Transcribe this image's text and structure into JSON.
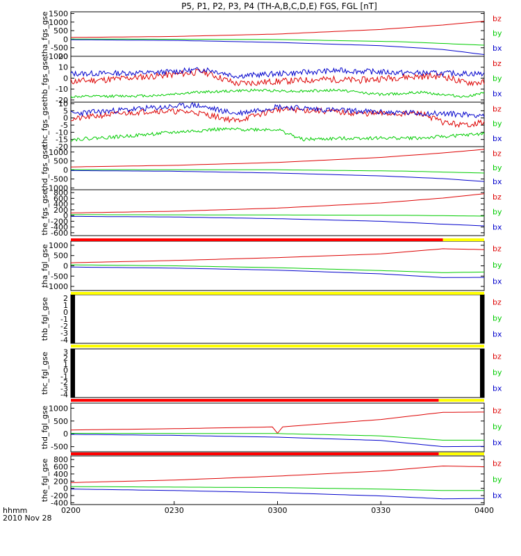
{
  "title": "P5, P1, P2, P3, P4 (TH-A,B,C,D,E) FGS, FGL [nT]",
  "footer": {
    "time_label": "hhmm",
    "date_label": "2010 Nov 28"
  },
  "colors": {
    "bz": "#dd0000",
    "by": "#00cc00",
    "bx": "#0000cc",
    "flag_red": "#ff0000",
    "flag_yellow": "#ffff00",
    "fill_black": "#000000"
  },
  "chart_data": {
    "type": "line",
    "x_axis": {
      "ticks": [
        "0200",
        "0230",
        "0300",
        "0330",
        "0400"
      ],
      "range": [
        "0200",
        "0400"
      ]
    },
    "panels": [
      {
        "id": "tha_fgs_gse",
        "ylabel": "tha_fgs_gse",
        "ylim": [
          -1000,
          1600
        ],
        "yticks": [
          "1500",
          "1000",
          "500",
          "0",
          "-500",
          "-1000"
        ],
        "yvals": [
          1500,
          1000,
          500,
          0,
          -500,
          -1000
        ],
        "mode": "smooth",
        "series": [
          {
            "name": "bz",
            "shape": [
              [
                0,
                100
              ],
              [
                0.25,
                160
              ],
              [
                0.5,
                300
              ],
              [
                0.75,
                570
              ],
              [
                0.9,
                830
              ],
              [
                1,
                1050
              ]
            ]
          },
          {
            "name": "by",
            "shape": [
              [
                0,
                10
              ],
              [
                0.5,
                -20
              ],
              [
                0.8,
                -150
              ],
              [
                1,
                -350
              ]
            ]
          },
          {
            "name": "bx",
            "shape": [
              [
                0,
                -30
              ],
              [
                0.25,
                -70
              ],
              [
                0.5,
                -190
              ],
              [
                0.75,
                -380
              ],
              [
                0.9,
                -600
              ],
              [
                1,
                -900
              ]
            ]
          }
        ]
      },
      {
        "id": "thb_fgs_gse",
        "ylabel": "thb_fgs_gse",
        "ylim": [
          -22,
          20
        ],
        "yticks": [
          "20",
          "10",
          "0",
          "-10",
          "-20"
        ],
        "yvals": [
          20,
          10,
          0,
          -10,
          -20
        ],
        "mode": "noisy",
        "series": [
          {
            "name": "bz",
            "shape": [
              [
                0,
                -3
              ],
              [
                0.1,
                -1
              ],
              [
                0.24,
                3
              ],
              [
                0.32,
                6
              ],
              [
                0.4,
                -5
              ],
              [
                0.5,
                -3
              ],
              [
                0.62,
                -1
              ],
              [
                0.7,
                -2
              ],
              [
                0.8,
                1
              ],
              [
                0.9,
                2
              ],
              [
                0.95,
                -4
              ],
              [
                1,
                -4
              ]
            ],
            "noise": 3
          },
          {
            "name": "by",
            "shape": [
              [
                0,
                -17
              ],
              [
                0.2,
                -16
              ],
              [
                0.3,
                -13
              ],
              [
                0.45,
                -11
              ],
              [
                0.55,
                -12
              ],
              [
                0.65,
                -11
              ],
              [
                0.75,
                -15
              ],
              [
                0.85,
                -13
              ],
              [
                0.95,
                -17
              ],
              [
                1,
                -14
              ]
            ],
            "noise": 1.2
          },
          {
            "name": "bx",
            "shape": [
              [
                0,
                4
              ],
              [
                0.2,
                5
              ],
              [
                0.33,
                8
              ],
              [
                0.4,
                2
              ],
              [
                0.55,
                5
              ],
              [
                0.65,
                7
              ],
              [
                0.8,
                5
              ],
              [
                1,
                4
              ]
            ],
            "noise": 2.5
          }
        ]
      },
      {
        "id": "thc_fgs_gse",
        "ylabel": "thc_fgs_gse",
        "ylim": [
          -20,
          11
        ],
        "yticks": [
          "10",
          "5",
          "0",
          "-5",
          "-10",
          "-15",
          "-20"
        ],
        "yvals": [
          10,
          5,
          0,
          -5,
          -10,
          -15,
          -20
        ],
        "mode": "noisy",
        "series": [
          {
            "name": "bz",
            "shape": [
              [
                0,
                -1
              ],
              [
                0.08,
                2
              ],
              [
                0.2,
                5
              ],
              [
                0.3,
                4
              ],
              [
                0.4,
                -2
              ],
              [
                0.5,
                6
              ],
              [
                0.6,
                5
              ],
              [
                0.7,
                3
              ],
              [
                0.85,
                3
              ],
              [
                0.9,
                -3
              ],
              [
                0.95,
                -5
              ],
              [
                1,
                -3
              ]
            ],
            "noise": 2
          },
          {
            "name": "by",
            "shape": [
              [
                0,
                -15
              ],
              [
                0.12,
                -13
              ],
              [
                0.25,
                -10
              ],
              [
                0.35,
                -8
              ],
              [
                0.5,
                -8
              ],
              [
                0.56,
                -15
              ],
              [
                0.7,
                -14
              ],
              [
                0.85,
                -14
              ],
              [
                0.95,
                -12
              ],
              [
                1,
                -11
              ]
            ],
            "noise": 1.2
          },
          {
            "name": "bx",
            "shape": [
              [
                0,
                3
              ],
              [
                0.1,
                5
              ],
              [
                0.2,
                7
              ],
              [
                0.3,
                9
              ],
              [
                0.4,
                3
              ],
              [
                0.5,
                8
              ],
              [
                0.6,
                6
              ],
              [
                0.75,
                4
              ],
              [
                0.9,
                3
              ],
              [
                1,
                2
              ]
            ],
            "noise": 2
          }
        ]
      },
      {
        "id": "thd_fgs_gse",
        "ylabel": "thd_fgs_gse",
        "ylim": [
          -1100,
          1300
        ],
        "yticks": [
          "1000",
          "500",
          "0",
          "-500",
          "-1000"
        ],
        "yvals": [
          1000,
          500,
          0,
          -500,
          -1000
        ],
        "mode": "smooth",
        "series": [
          {
            "name": "bz",
            "shape": [
              [
                0,
                170
              ],
              [
                0.25,
                260
              ],
              [
                0.5,
                420
              ],
              [
                0.75,
                700
              ],
              [
                0.9,
                950
              ],
              [
                1,
                1150
              ]
            ]
          },
          {
            "name": "by",
            "shape": [
              [
                0,
                20
              ],
              [
                0.5,
                10
              ],
              [
                0.8,
                -60
              ],
              [
                1,
                -170
              ]
            ]
          },
          {
            "name": "bx",
            "shape": [
              [
                0,
                -30
              ],
              [
                0.25,
                -70
              ],
              [
                0.5,
                -170
              ],
              [
                0.75,
                -330
              ],
              [
                0.9,
                -480
              ],
              [
                1,
                -640
              ]
            ]
          }
        ]
      },
      {
        "id": "the_fgs_gse",
        "ylabel": "the_fgs_gse",
        "ylim": [
          -700,
          900
        ],
        "yticks": [
          "800",
          "600",
          "400",
          "200",
          "0",
          "-200",
          "-400",
          "-600"
        ],
        "yvals": [
          800,
          600,
          400,
          200,
          0,
          -200,
          -400,
          -600
        ],
        "mode": "smooth",
        "series": [
          {
            "name": "bz",
            "shape": [
              [
                0,
                90
              ],
              [
                0.25,
                150
              ],
              [
                0.5,
                260
              ],
              [
                0.75,
                440
              ],
              [
                0.9,
                610
              ],
              [
                1,
                760
              ]
            ]
          },
          {
            "name": "by",
            "shape": [
              [
                0,
                30
              ],
              [
                0.5,
                20
              ],
              [
                0.8,
                10
              ],
              [
                1,
                -20
              ]
            ]
          },
          {
            "name": "bx",
            "shape": [
              [
                0,
                -30
              ],
              [
                0.25,
                -50
              ],
              [
                0.5,
                -110
              ],
              [
                0.75,
                -200
              ],
              [
                0.9,
                -300
              ],
              [
                1,
                -360
              ]
            ]
          }
        ]
      },
      {
        "id": "tha_fgl_gse",
        "ylabel": "tha_fgl_gse",
        "ylim": [
          -1200,
          1200
        ],
        "yticks": [
          "1000",
          "500",
          "0",
          "-500",
          "-1000"
        ],
        "yvals": [
          1000,
          500,
          0,
          -500,
          -1000
        ],
        "mode": "smooth",
        "flag": {
          "red_until": 0.9,
          "fill_flag": false
        },
        "series": [
          {
            "name": "bz",
            "shape": [
              [
                0,
                150
              ],
              [
                0.25,
                260
              ],
              [
                0.5,
                400
              ],
              [
                0.75,
                580
              ],
              [
                0.9,
                830
              ],
              [
                1,
                790
              ]
            ]
          },
          {
            "name": "by",
            "shape": [
              [
                0,
                50
              ],
              [
                0.25,
                0
              ],
              [
                0.5,
                -90
              ],
              [
                0.75,
                -230
              ],
              [
                0.9,
                -330
              ],
              [
                1,
                -300
              ]
            ]
          },
          {
            "name": "bx",
            "shape": [
              [
                0,
                -60
              ],
              [
                0.25,
                -110
              ],
              [
                0.5,
                -210
              ],
              [
                0.75,
                -390
              ],
              [
                0.9,
                -570
              ],
              [
                1,
                -560
              ]
            ]
          }
        ]
      },
      {
        "id": "thb_fgl_gse",
        "ylabel": "thb_fgl_gse",
        "ylim": [
          -4.5,
          2.5
        ],
        "yticks": [
          "2",
          "1",
          "0",
          "-1",
          "-2",
          "-3",
          "-4"
        ],
        "yvals": [
          2,
          1,
          0,
          -1,
          -2,
          -3,
          -4
        ],
        "mode": "empty",
        "flag": {
          "red_until": 0,
          "fill_flag": false
        },
        "series": []
      },
      {
        "id": "thc_fgl_gse",
        "ylabel": "thc_fgl_gse",
        "ylim": [
          -4.5,
          3.5
        ],
        "yticks": [
          "3",
          "2",
          "1",
          "0",
          "-1",
          "-2",
          "-3",
          "-4"
        ],
        "yvals": [
          3,
          2,
          1,
          0,
          -1,
          -2,
          -3,
          -4
        ],
        "mode": "empty",
        "flag": {
          "red_until": 0,
          "fill_flag": false
        },
        "series": []
      },
      {
        "id": "thd_fgl_gse",
        "ylabel": "thd_fgl_gse",
        "ylim": [
          -700,
          1200
        ],
        "yticks": [
          "1000",
          "500",
          "0",
          "-500"
        ],
        "yvals": [
          1000,
          500,
          0,
          -500
        ],
        "mode": "smooth",
        "flag": {
          "red_until": 0.89,
          "fill_flag": false
        },
        "series": [
          {
            "name": "bz",
            "shape": [
              [
                0,
                150
              ],
              [
                0.25,
                200
              ],
              [
                0.49,
                270
              ],
              [
                0.5,
                20
              ],
              [
                0.51,
                270
              ],
              [
                0.75,
                560
              ],
              [
                0.9,
                840
              ],
              [
                1,
                850
              ]
            ]
          },
          {
            "name": "by",
            "shape": [
              [
                0,
                20
              ],
              [
                0.5,
                10
              ],
              [
                0.75,
                -80
              ],
              [
                0.9,
                -250
              ],
              [
                1,
                -250
              ]
            ]
          },
          {
            "name": "bx",
            "shape": [
              [
                0,
                -20
              ],
              [
                0.25,
                -60
              ],
              [
                0.5,
                -130
              ],
              [
                0.75,
                -260
              ],
              [
                0.9,
                -500
              ],
              [
                1,
                -490
              ]
            ]
          }
        ]
      },
      {
        "id": "the_fgl_gse",
        "ylabel": "the_fgl_gse",
        "ylim": [
          -450,
          900
        ],
        "yticks": [
          "800",
          "600",
          "400",
          "200",
          "0",
          "-200",
          "-400"
        ],
        "yvals": [
          800,
          600,
          400,
          200,
          0,
          -200,
          -400
        ],
        "mode": "smooth",
        "flag": {
          "red_until": 0.89,
          "fill_flag": false
        },
        "series": [
          {
            "name": "bz",
            "shape": [
              [
                0,
                160
              ],
              [
                0.25,
                230
              ],
              [
                0.5,
                340
              ],
              [
                0.75,
                480
              ],
              [
                0.9,
                620
              ],
              [
                1,
                600
              ]
            ]
          },
          {
            "name": "by",
            "shape": [
              [
                0,
                50
              ],
              [
                0.5,
                20
              ],
              [
                0.75,
                -20
              ],
              [
                0.9,
                -60
              ],
              [
                1,
                -60
              ]
            ]
          },
          {
            "name": "bx",
            "shape": [
              [
                0,
                -20
              ],
              [
                0.25,
                -60
              ],
              [
                0.5,
                -120
              ],
              [
                0.75,
                -210
              ],
              [
                0.9,
                -290
              ],
              [
                1,
                -280
              ]
            ]
          }
        ]
      }
    ],
    "legend": [
      "bz",
      "by",
      "bx"
    ]
  }
}
